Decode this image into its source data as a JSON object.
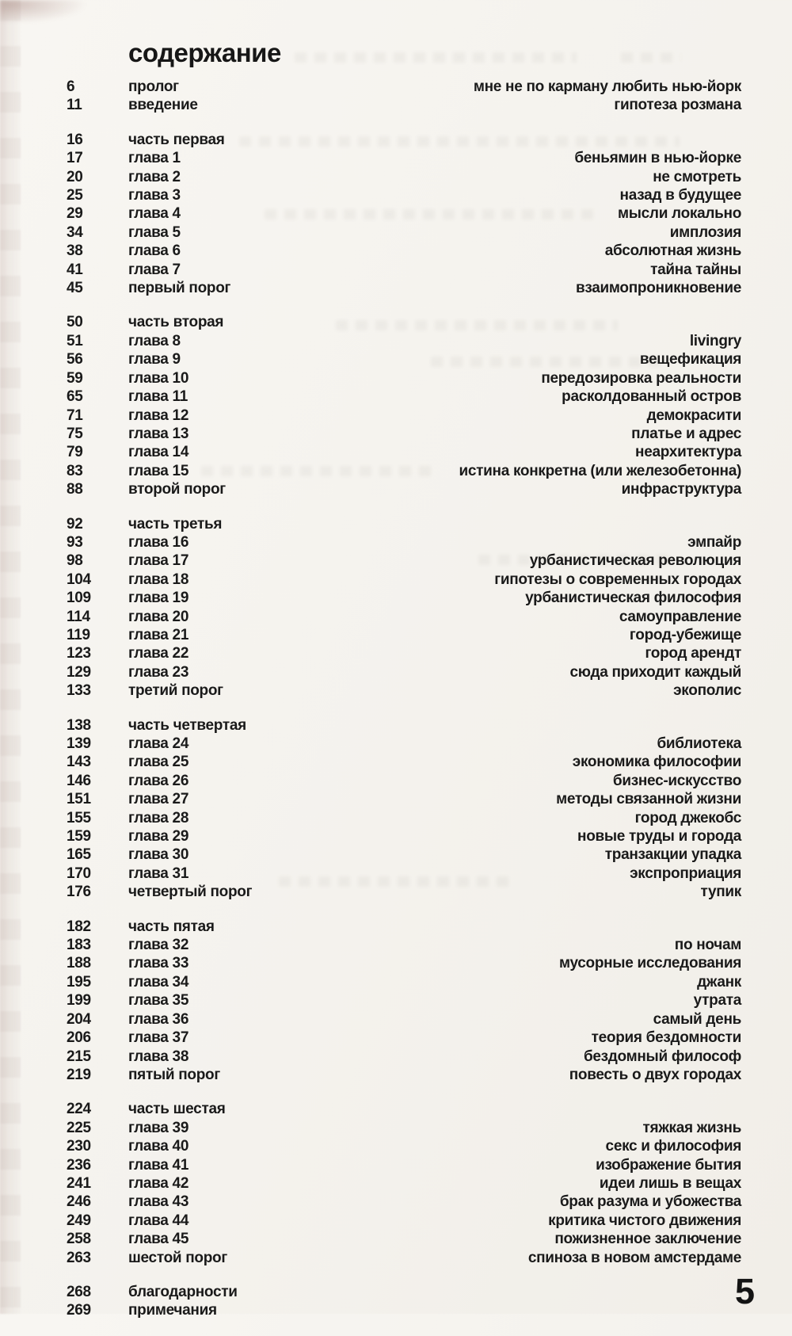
{
  "page": {
    "title": "содержание",
    "page_number": "5",
    "colors": {
      "ink": "#1a1a1a",
      "paper": "#f4f2ed"
    }
  },
  "toc": {
    "groups": [
      {
        "rows": [
          {
            "page": "6",
            "label": "пролог",
            "title": "мне не по карману любить нью-йорк"
          },
          {
            "page": "11",
            "label": "введение",
            "title": "гипотеза розмана"
          }
        ]
      },
      {
        "rows": [
          {
            "page": "16",
            "label": "часть первая",
            "title": ""
          },
          {
            "page": "17",
            "label": "глава 1",
            "title": "беньямин в нью-йорке"
          },
          {
            "page": "20",
            "label": "глава 2",
            "title": "не смотреть"
          },
          {
            "page": "25",
            "label": "глава 3",
            "title": "назад в будущее"
          },
          {
            "page": "29",
            "label": "глава 4",
            "title": "мысли локально"
          },
          {
            "page": "34",
            "label": "глава 5",
            "title": "имплозия"
          },
          {
            "page": "38",
            "label": "глава 6",
            "title": "абсолютная жизнь"
          },
          {
            "page": "41",
            "label": "глава 7",
            "title": "тайна тайны"
          },
          {
            "page": "45",
            "label": "первый порог",
            "title": "взаимопроникновение"
          }
        ]
      },
      {
        "rows": [
          {
            "page": "50",
            "label": "часть вторая",
            "title": ""
          },
          {
            "page": "51",
            "label": "глава 8",
            "title": "livingry"
          },
          {
            "page": "56",
            "label": "глава 9",
            "title": "вещефикация"
          },
          {
            "page": "59",
            "label": "глава 10",
            "title": "передозировка реальности"
          },
          {
            "page": "65",
            "label": "глава 11",
            "title": "расколдованный остров"
          },
          {
            "page": "71",
            "label": "глава 12",
            "title": "демокрасити"
          },
          {
            "page": "75",
            "label": "глава 13",
            "title": "платье и адрес"
          },
          {
            "page": "79",
            "label": "глава 14",
            "title": "неархитектура"
          },
          {
            "page": "83",
            "label": "глава 15",
            "title": "истина конкретна (или железобетонна)"
          },
          {
            "page": "88",
            "label": "второй порог",
            "title": "инфраструктура"
          }
        ]
      },
      {
        "rows": [
          {
            "page": "92",
            "label": "часть третья",
            "title": ""
          },
          {
            "page": "93",
            "label": "глава 16",
            "title": "эмпайр"
          },
          {
            "page": "98",
            "label": "глава 17",
            "title": "урбанистическая революция"
          },
          {
            "page": "104",
            "label": "глава 18",
            "title": "гипотезы о современных городах"
          },
          {
            "page": "109",
            "label": "глава 19",
            "title": "урбанистическая философия"
          },
          {
            "page": "114",
            "label": "глава 20",
            "title": "самоуправление"
          },
          {
            "page": "119",
            "label": "глава 21",
            "title": "город-убежище"
          },
          {
            "page": "123",
            "label": "глава 22",
            "title": "город арендт"
          },
          {
            "page": "129",
            "label": "глава 23",
            "title": "сюда приходит каждый"
          },
          {
            "page": "133",
            "label": "третий порог",
            "title": "экополис"
          }
        ]
      },
      {
        "rows": [
          {
            "page": "138",
            "label": "часть четвертая",
            "title": ""
          },
          {
            "page": "139",
            "label": "глава 24",
            "title": "библиотека"
          },
          {
            "page": "143",
            "label": "глава 25",
            "title": "экономика философии"
          },
          {
            "page": "146",
            "label": "глава 26",
            "title": "бизнес-искусство"
          },
          {
            "page": "151",
            "label": "глава 27",
            "title": "методы связанной жизни"
          },
          {
            "page": "155",
            "label": "глава 28",
            "title": "город джекобс"
          },
          {
            "page": "159",
            "label": "глава 29",
            "title": "новые труды и города"
          },
          {
            "page": "165",
            "label": "глава 30",
            "title": "транзакции упадка"
          },
          {
            "page": "170",
            "label": "глава 31",
            "title": "экспроприация"
          },
          {
            "page": "176",
            "label": "четвертый порог",
            "title": "тупик"
          }
        ]
      },
      {
        "rows": [
          {
            "page": "182",
            "label": "часть пятая",
            "title": ""
          },
          {
            "page": "183",
            "label": "глава 32",
            "title": "по ночам"
          },
          {
            "page": "188",
            "label": "глава 33",
            "title": "мусорные исследования"
          },
          {
            "page": "195",
            "label": "глава 34",
            "title": "джанк"
          },
          {
            "page": "199",
            "label": "глава 35",
            "title": "утрата"
          },
          {
            "page": "204",
            "label": "глава 36",
            "title": "самый день"
          },
          {
            "page": "206",
            "label": "глава 37",
            "title": "теория бездомности"
          },
          {
            "page": "215",
            "label": "глава 38",
            "title": "бездомный философ"
          },
          {
            "page": "219",
            "label": "пятый порог",
            "title": "повесть о двух городах"
          }
        ]
      },
      {
        "rows": [
          {
            "page": "224",
            "label": "часть шестая",
            "title": ""
          },
          {
            "page": "225",
            "label": "глава 39",
            "title": "тяжкая жизнь"
          },
          {
            "page": "230",
            "label": "глава 40",
            "title": "секс и философия"
          },
          {
            "page": "236",
            "label": "глава 41",
            "title": "изображение бытия"
          },
          {
            "page": "241",
            "label": "глава 42",
            "title": "идеи лишь в вещах"
          },
          {
            "page": "246",
            "label": "глава 43",
            "title": "брак разума и убожества"
          },
          {
            "page": "249",
            "label": "глава 44",
            "title": "критика чистого движения"
          },
          {
            "page": "258",
            "label": "глава 45",
            "title": "пожизненное заключение"
          },
          {
            "page": "263",
            "label": "шестой порог",
            "title": "спиноза в новом амстердаме"
          }
        ]
      },
      {
        "rows": [
          {
            "page": "268",
            "label": "благодарности",
            "title": ""
          },
          {
            "page": "269",
            "label": "примечания",
            "title": ""
          }
        ]
      }
    ]
  }
}
